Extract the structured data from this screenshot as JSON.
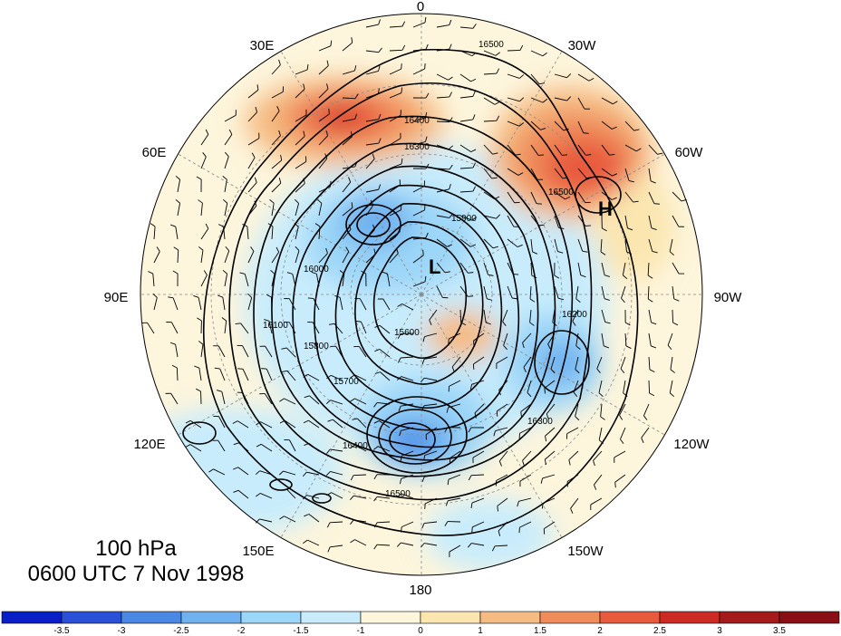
{
  "map": {
    "projection": "north-polar-stereographic",
    "longitude_labels": [
      "0",
      "30W",
      "60W",
      "90W",
      "120W",
      "150W",
      "180",
      "150E",
      "120E",
      "90E",
      "60E",
      "30E"
    ],
    "contour_labels": [
      "16500",
      "16400",
      "16300",
      "16200",
      "16100",
      "16000",
      "15900",
      "15800",
      "15700",
      "15600"
    ],
    "markers": {
      "high": "H",
      "low": "L"
    },
    "shading_colors": [
      "#0a1ec8",
      "#2a50d8",
      "#4a88e6",
      "#70b2f0",
      "#9cd6f8",
      "#c8ecfc",
      "#fdf5dc",
      "#fbe6b0",
      "#f5bb82",
      "#ef8c5a",
      "#e85a3c",
      "#cc2a22",
      "#a51a1a"
    ]
  },
  "title": {
    "line1": "100 hPa",
    "line2": "0600 UTC 7 Nov 1998"
  },
  "colorbar": {
    "tick_labels": [
      "-3.5",
      "-3",
      "-2.5",
      "-2",
      "-1.5",
      "-1",
      "0",
      "1",
      "1.5",
      "2",
      "2.5",
      "3",
      "3.5"
    ],
    "colors": [
      "#0a1ec8",
      "#2a50d8",
      "#4a88e6",
      "#70b2f0",
      "#9cd6f8",
      "#c8ecfc",
      "#fdf5dc",
      "#fbe6b0",
      "#f5bb82",
      "#ef8c5a",
      "#e85a3c",
      "#cc2a22",
      "#a51a1a",
      "#8a0f14"
    ]
  }
}
